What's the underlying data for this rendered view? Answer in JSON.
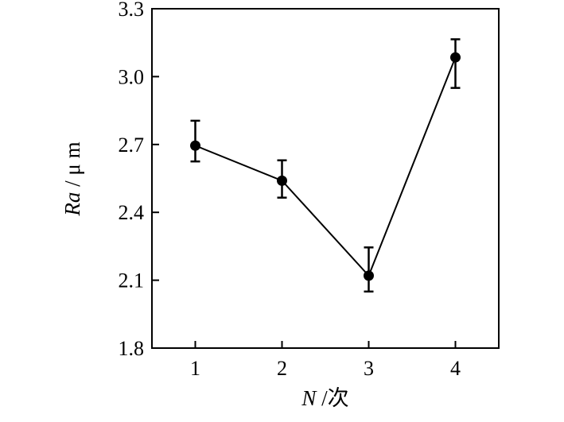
{
  "chart_data": {
    "type": "line",
    "x": [
      1,
      2,
      3,
      4
    ],
    "series": [
      {
        "values": [
          2.695,
          2.54,
          2.12,
          3.085
        ],
        "error_low": [
          2.625,
          2.465,
          2.05,
          2.95
        ],
        "error_high": [
          2.805,
          2.63,
          2.245,
          3.165
        ]
      }
    ],
    "xlabel": {
      "italic": "N",
      "rest": " /次"
    },
    "ylabel": {
      "italic": "Ra",
      "rest": " / μ m"
    },
    "xticks": [
      "1",
      "2",
      "3",
      "4"
    ],
    "yticks": [
      "1.8",
      "2.1",
      "2.4",
      "2.7",
      "3.0",
      "3.3"
    ],
    "ylim": [
      1.8,
      3.3
    ],
    "xlim": [
      0.5,
      4.5
    ],
    "grid": false,
    "legend": "none",
    "colors": {
      "line": "#000000",
      "marker": "#000000"
    }
  }
}
